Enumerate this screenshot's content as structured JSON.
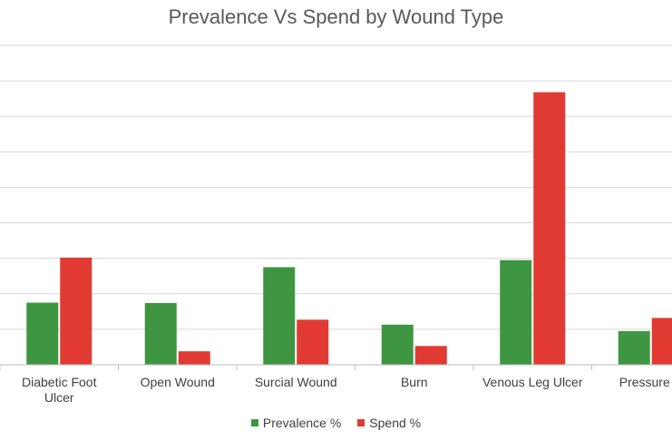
{
  "chart_data": {
    "type": "bar",
    "title": "Prevalence Vs Spend by Wound Type",
    "categories": [
      "Diabetic Foot Ulcer",
      "Open Wound",
      "Surcial Wound",
      "Burn",
      "Venous Leg Ulcer",
      "Pressure Ulcer"
    ],
    "category_lines": [
      [
        "Diabetic Foot",
        "Ulcer"
      ],
      [
        "Open Wound"
      ],
      [
        "Surcial Wound"
      ],
      [
        "Burn"
      ],
      [
        "Venous Leg Ulcer"
      ],
      [
        "Pressure U"
      ]
    ],
    "series": [
      {
        "name": "Prevalence %",
        "color": "#3f9642",
        "values": [
          17.5,
          17.4,
          27.5,
          11.3,
          29.5,
          9.5
        ]
      },
      {
        "name": "Spend %",
        "color": "#e13a32",
        "values": [
          30.2,
          3.8,
          12.7,
          5.3,
          76.8,
          13.2
        ]
      }
    ],
    "ylim": [
      0,
      90
    ],
    "y_gridlines": [
      10,
      20,
      30,
      40,
      50,
      60,
      70,
      80,
      90
    ],
    "y_tick_labels_visible": false,
    "grid": true,
    "legend_position": "bottom"
  }
}
